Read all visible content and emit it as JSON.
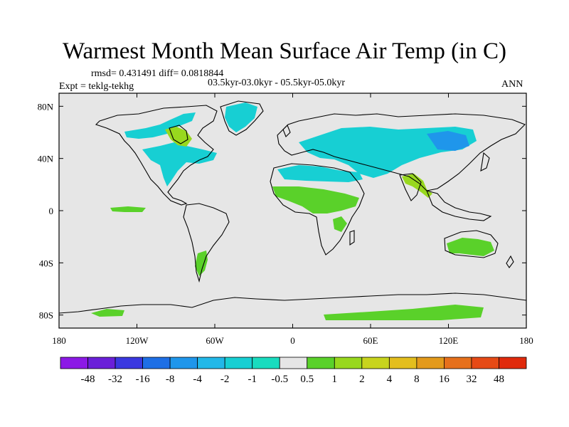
{
  "title": "Warmest Month Mean Surface Air Temp (in C)",
  "stats": "rmsd= 0.431491 diff= 0.0818844",
  "period": "03.5kyr-03.0kyr - 05.5kyr-05.0kyr",
  "experiment": "Expt = teklg-tekhg",
  "season": "ANN",
  "map": {
    "background_color": "#e6e6e6",
    "coast_color": "#000000",
    "lon_labels": [
      "180",
      "120W",
      "60W",
      "0",
      "60E",
      "120E",
      "180"
    ],
    "lat_labels": [
      "80N",
      "40N",
      "0",
      "40S",
      "80S"
    ]
  },
  "colorbar": {
    "labels": [
      "-48",
      "-32",
      "-16",
      "-8",
      "-4",
      "-2",
      "-1",
      "-0.5",
      "0.5",
      "1",
      "2",
      "4",
      "8",
      "16",
      "32",
      "48"
    ],
    "colors": [
      "#8c19e6",
      "#6a1fd9",
      "#3a38e0",
      "#1e6fe6",
      "#1f96eb",
      "#22b8e8",
      "#17cfd3",
      "#19dcbf",
      "#e6e6e6",
      "#5ad12a",
      "#98d81e",
      "#c8d41d",
      "#e3be1e",
      "#e39a1c",
      "#e6701c",
      "#e64a16",
      "#e02a0c"
    ]
  },
  "anomaly_regions": [
    {
      "name": "north-america-arctic-cool",
      "color": "#17cfd3"
    },
    {
      "name": "north-america-cool",
      "color": "#17cfd3"
    },
    {
      "name": "hudson-warm",
      "color": "#98d81e"
    },
    {
      "name": "greenland-cool",
      "color": "#17cfd3"
    },
    {
      "name": "eurasia-cool",
      "color": "#17cfd3"
    },
    {
      "name": "siberia-cool",
      "color": "#1f96eb"
    },
    {
      "name": "north-africa-cool",
      "color": "#17cfd3"
    },
    {
      "name": "sahel-warm",
      "color": "#5ad12a"
    },
    {
      "name": "east-africa-warm",
      "color": "#5ad12a"
    },
    {
      "name": "india-warm",
      "color": "#98d81e"
    },
    {
      "name": "australia-warm",
      "color": "#5ad12a"
    },
    {
      "name": "south-america-warm",
      "color": "#5ad12a"
    },
    {
      "name": "antarctica-warm",
      "color": "#5ad12a"
    }
  ]
}
